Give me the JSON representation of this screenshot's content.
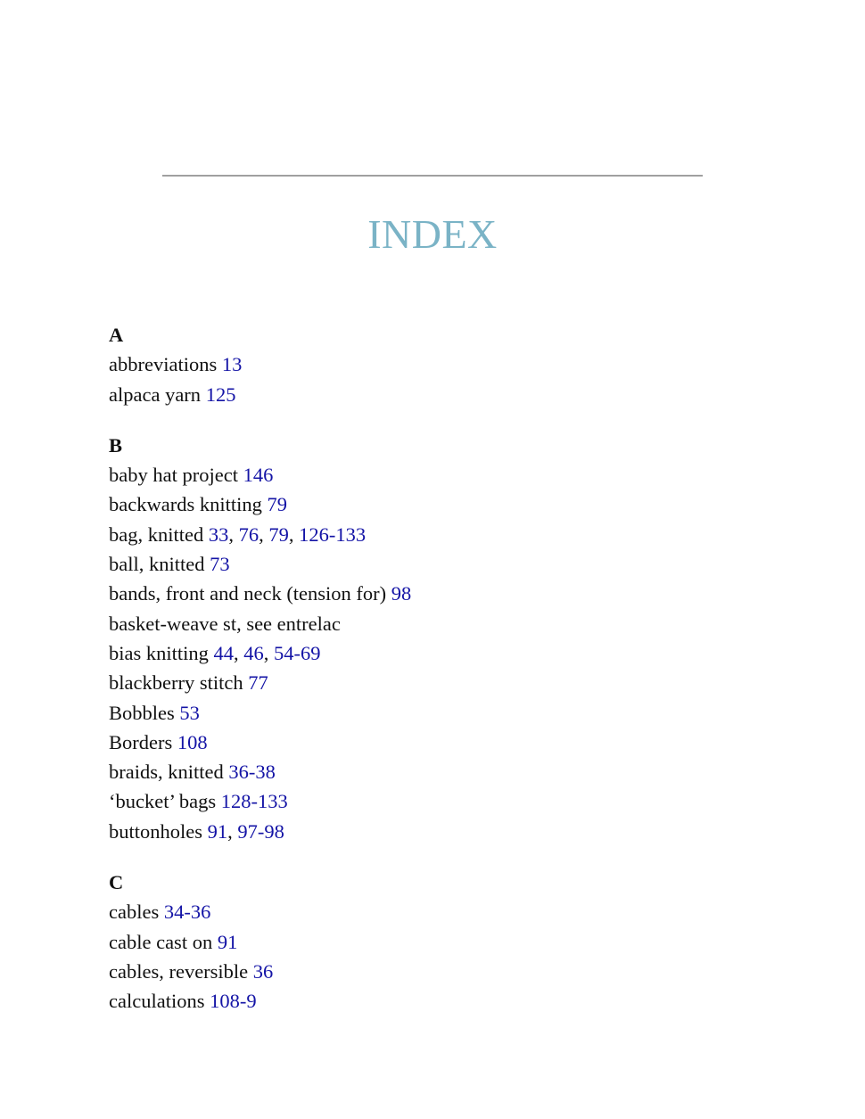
{
  "colors": {
    "title": "#7ab3c6",
    "page_link": "#1414a6",
    "rule": "#a0a0a0"
  },
  "title": "INDEX",
  "sections": [
    {
      "letter": "A",
      "entries": [
        {
          "term": "abbreviations",
          "pages": [
            "13"
          ]
        },
        {
          "term": "alpaca yarn",
          "pages": [
            "125"
          ]
        }
      ]
    },
    {
      "letter": "B",
      "entries": [
        {
          "term": "baby hat project",
          "pages": [
            "146"
          ]
        },
        {
          "term": "backwards knitting",
          "pages": [
            "79"
          ]
        },
        {
          "term": "bag, knitted",
          "pages": [
            "33",
            "76",
            "79",
            "126-133"
          ]
        },
        {
          "term": "ball, knitted",
          "pages": [
            "73"
          ]
        },
        {
          "term": "bands, front and neck (tension for)",
          "pages": [
            "98"
          ]
        },
        {
          "term": "basket-weave st, see entrelac",
          "pages": []
        },
        {
          "term": "bias knitting",
          "pages": [
            "44",
            "46",
            "54-69"
          ]
        },
        {
          "term": "blackberry stitch",
          "pages": [
            "77"
          ]
        },
        {
          "term": "Bobbles",
          "pages": [
            "53"
          ]
        },
        {
          "term": "Borders",
          "pages": [
            "108"
          ]
        },
        {
          "term": "braids, knitted",
          "pages": [
            "36-38"
          ]
        },
        {
          "term": "‘bucket’ bags",
          "pages": [
            "128-133"
          ]
        },
        {
          "term": "buttonholes",
          "pages": [
            "91",
            "97-98"
          ]
        }
      ]
    },
    {
      "letter": "C",
      "entries": [
        {
          "term": "cables",
          "pages": [
            "34-36"
          ]
        },
        {
          "term": "cable cast on",
          "pages": [
            "91"
          ]
        },
        {
          "term": "cables, reversible",
          "pages": [
            "36"
          ]
        },
        {
          "term": "calculations",
          "pages": [
            "108-9"
          ]
        }
      ]
    }
  ]
}
